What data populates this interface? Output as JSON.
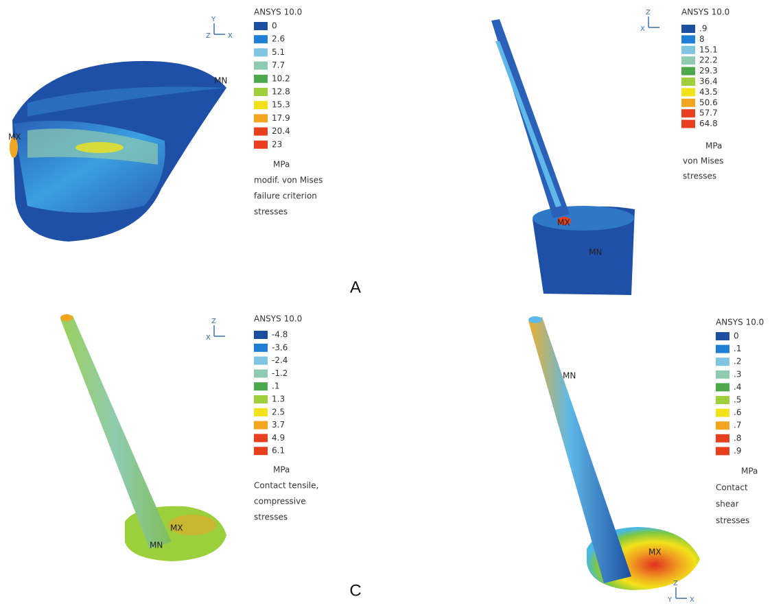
{
  "panels": [
    {
      "legend": {
        "title": "ANSYS 10.0",
        "values": [
          "0",
          "2.6",
          "5.1",
          "7.7",
          "10.2",
          "12.8",
          "15.3",
          "17.9",
          "20.4",
          "23"
        ],
        "unit": "MPa",
        "caption": [
          "modif. von Mises",
          "failure criterion",
          "stresses"
        ]
      },
      "annotations": [
        "MN",
        "MX"
      ],
      "axes": [
        "Y",
        "Z",
        "X"
      ]
    },
    {
      "legend": {
        "title": "ANSYS 10.0",
        "values": [
          ".9",
          "8",
          "15.1",
          "22.2",
          "29.3",
          "36.4",
          "43.5",
          "50.6",
          "57.7",
          "64.8"
        ],
        "unit": "MPa",
        "caption": [
          "von Mises",
          "stresses"
        ]
      },
      "annotations": [
        "MX",
        "MN"
      ],
      "axes": [
        "Z",
        "X"
      ]
    },
    {
      "legend": {
        "title": "ANSYS 10.0",
        "values": [
          "-4.8",
          "-3.6",
          "-2.4",
          "-1.2",
          ".1",
          "1.3",
          "2.5",
          "3.7",
          "4.9",
          "6.1"
        ],
        "unit": "MPa",
        "caption": [
          "Contact tensile,",
          "compressive",
          "stresses"
        ]
      },
      "annotations": [
        "MX",
        "MN"
      ],
      "axes": [
        "Z",
        "X"
      ]
    },
    {
      "legend": {
        "title": "ANSYS 10.0",
        "values": [
          "0",
          ".1",
          ".2",
          ".3",
          ".4",
          ".5",
          ".6",
          ".7",
          ".8",
          ".9"
        ],
        "unit": "MPa",
        "caption": [
          "Contact",
          "shear",
          "stresses"
        ]
      },
      "annotations": [
        "MN",
        "MX"
      ],
      "axes": [
        "Z",
        "Y",
        "X"
      ]
    }
  ],
  "labels": [
    "A",
    "C"
  ]
}
